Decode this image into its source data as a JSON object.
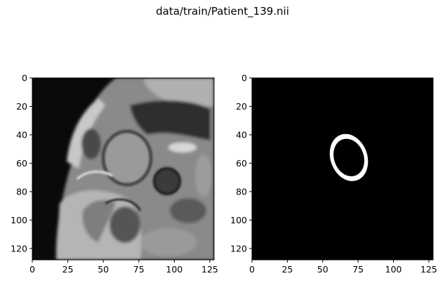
{
  "figure": {
    "title": "data/train/Patient_139.nii"
  },
  "panels": [
    {
      "name": "mri-image",
      "x_ticks": [
        "0",
        "25",
        "50",
        "75",
        "100",
        "125"
      ],
      "y_ticks": [
        "0",
        "20",
        "40",
        "60",
        "80",
        "100",
        "120"
      ],
      "extent": [
        0,
        128
      ]
    },
    {
      "name": "segmentation-mask",
      "x_ticks": [
        "0",
        "25",
        "50",
        "75",
        "100",
        "125"
      ],
      "y_ticks": [
        "0",
        "20",
        "40",
        "60",
        "80",
        "100",
        "120"
      ],
      "extent": [
        0,
        128
      ],
      "mask_ring": {
        "center_x": 68.5,
        "center_y": 56,
        "outer_rx": 13,
        "outer_ry": 17,
        "inner_rx": 10.5,
        "inner_ry": 13.5
      }
    }
  ],
  "colors": {
    "mask_background": "#000000",
    "mask_foreground": "#ffffff"
  }
}
